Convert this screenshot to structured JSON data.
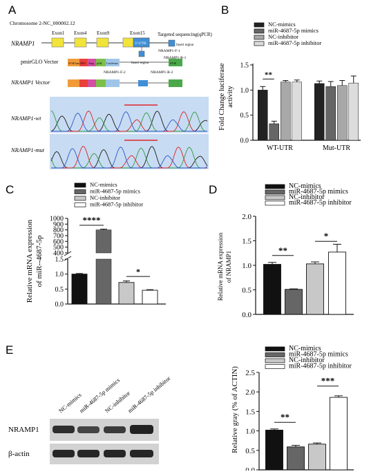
{
  "panels": {
    "A": {
      "letter": "A",
      "chromosome": "Chromosome 2-NC_000002.12",
      "exons": [
        "Exon1",
        "Exon4",
        "Exon9",
        "Exon15"
      ],
      "utr_label": "3'-UTR",
      "targeted_sequencing": "Targeted sequencing(qPCR)",
      "primer_f1": "NRAMP1-F-1",
      "primer_r1": "NRAMP1-R-1",
      "primer_f2": "NRAMP1-F-2",
      "primer_r2": "NRAMP1-R-2",
      "insert_region": "Insert region",
      "gene_label": "NRAMP1",
      "pmirglo_label": "pmirGLO Vector",
      "nramp1_vector_label": "NRAMP1 Vector",
      "vector_elements": [
        "SV40 late",
        "NEO",
        "Amp",
        "pGK",
        "Luciferase",
        "SV40"
      ],
      "wt_label": "NRAMP1-wt",
      "mut_label": "NRAMP1-mut",
      "colors": {
        "exon": "#f2e33a",
        "utr": "#3f8fd6",
        "chrom_bg": "#c7dbf2",
        "underline": "#e0242a"
      }
    },
    "B": {
      "letter": "B",
      "legend": [
        "NC-mimics",
        "miR-4687-5p mimics",
        "NC-inhibitor",
        "miR-4687-5p inhibitor"
      ],
      "significance": "**"
    },
    "C": {
      "letter": "C",
      "legend": [
        "NC-mimics",
        "miR-4687-5p mimics",
        "NC-inhibitor",
        "miR-4687-5p inhibitor"
      ],
      "sig1": "****",
      "sig2": "*"
    },
    "D": {
      "letter": "D",
      "legend": [
        "NC-mimics",
        "miR-4687-5p mimics",
        "NC-inhibitor",
        "miR-4687-5p inhibitor"
      ],
      "sig1": "**",
      "sig2": "*"
    },
    "E": {
      "letter": "E",
      "lane_labels": [
        "NC-mimics",
        "miR-4687-5p mimics",
        "NC-inhibitor",
        "miR-4687-5p inhibitor"
      ],
      "band_labels": [
        "NRAMP1",
        "β-actin"
      ],
      "legend": [
        "NC-mimics",
        "miR-4687-5p mimics",
        "NC-inhibitor",
        "miR-4687-5p inhibitor"
      ],
      "sig1": "**",
      "sig2": "***"
    }
  },
  "chart_data": [
    {
      "id": "B",
      "type": "bar",
      "categories": [
        "WT-UTR",
        "Mut-UTR"
      ],
      "series": [
        {
          "name": "NC-mimics",
          "values": [
            1.0,
            1.13
          ],
          "errors": [
            0.07,
            0.05
          ]
        },
        {
          "name": "miR-4687-5p mimics",
          "values": [
            0.33,
            1.07
          ],
          "errors": [
            0.05,
            0.1
          ]
        },
        {
          "name": "NC-inhibitor",
          "values": [
            1.16,
            1.09
          ],
          "errors": [
            0.03,
            0.1
          ]
        },
        {
          "name": "miR-4687-5p inhibitor",
          "values": [
            1.16,
            1.14
          ],
          "errors": [
            0.04,
            0.14
          ]
        }
      ],
      "ylabel": "Fold Change luciferase activity",
      "ylim": [
        0,
        1.5
      ],
      "yticks": [
        "0.0",
        "0.5",
        "1.0",
        "1.5"
      ],
      "colors": [
        "#222222",
        "#666666",
        "#a8a8a8",
        "#dcdcdc"
      ]
    },
    {
      "id": "C",
      "type": "bar",
      "categories": [
        "NC-mimics",
        "miR-4687-5p mimics",
        "NC-inhibitor",
        "miR-4687-5p inhibitor"
      ],
      "values": [
        1.0,
        800,
        0.72,
        0.46
      ],
      "errors": [
        0.02,
        12,
        0.05,
        0.02
      ],
      "ylabel": "Relative mRNA expression of miR--4687-5p",
      "axis_break": true,
      "ylim_lower": [
        0,
        1.5
      ],
      "ylim_upper": [
        400,
        1000
      ],
      "yticks_lower": [
        "0.0",
        "0.5",
        "1.0",
        "1.5"
      ],
      "yticks_upper": [
        "400",
        "500",
        "600",
        "700",
        "800",
        "900",
        "1000"
      ],
      "colors": [
        "#111111",
        "#666666",
        "#c8c8c8",
        "#ffffff"
      ]
    },
    {
      "id": "D",
      "type": "bar",
      "categories": [
        "NC-mimics",
        "miR-4687-5p mimics",
        "NC-inhibitor",
        "miR-4687-5p inhibitor"
      ],
      "values": [
        1.02,
        0.51,
        1.03,
        1.27
      ],
      "errors": [
        0.04,
        0.01,
        0.04,
        0.16
      ],
      "ylabel": "Relative mRNA expression of NRAMP1",
      "ylim": [
        0,
        2.0
      ],
      "yticks": [
        "0.0",
        "0.5",
        "1.0",
        "1.5",
        "2.0"
      ],
      "colors": [
        "#111111",
        "#666666",
        "#c8c8c8",
        "#ffffff"
      ]
    },
    {
      "id": "E",
      "type": "bar",
      "categories": [
        "NC-mimics",
        "miR-4687-5p mimics",
        "NC-inhibitor",
        "miR-4687-5p inhibitor"
      ],
      "values": [
        1.02,
        0.59,
        0.66,
        1.86
      ],
      "errors": [
        0.03,
        0.04,
        0.03,
        0.04
      ],
      "ylabel": "Relative gray (% of ACTIN)",
      "ylim": [
        0,
        2.5
      ],
      "yticks": [
        "0.0",
        "0.5",
        "1.0",
        "1.5",
        "2.0",
        "2.5"
      ],
      "colors": [
        "#111111",
        "#666666",
        "#c8c8c8",
        "#ffffff"
      ]
    }
  ]
}
